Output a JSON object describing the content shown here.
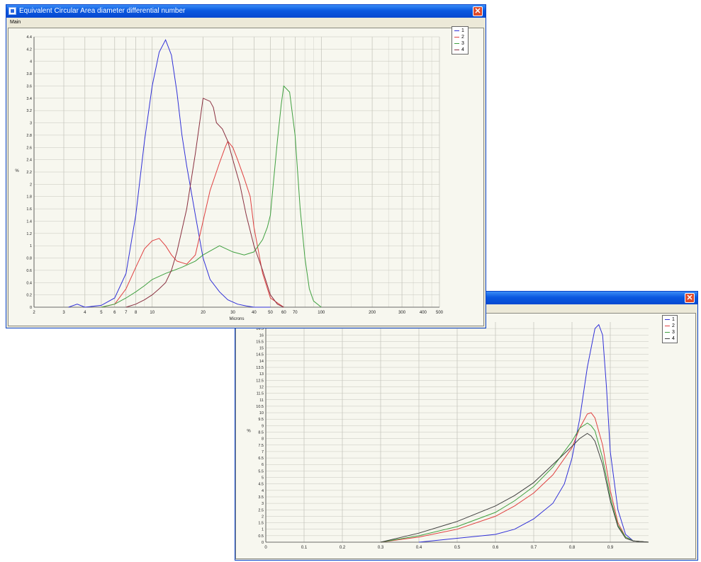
{
  "window1": {
    "title": "Equivalent Circular Area diameter differential number",
    "menu_label": "Main",
    "close_glyph": "✕"
  },
  "window2": {
    "close_glyph": "✕"
  },
  "chart_data": [
    {
      "type": "line",
      "xscale": "log",
      "xlim": [
        2,
        500
      ],
      "ylim": [
        0,
        4.4
      ],
      "xlabel": "Microns",
      "ylabel": "%",
      "x_ticks": [
        "2",
        "3",
        "4",
        "5",
        "6",
        "7",
        "8",
        "10",
        "20",
        "30",
        "40",
        "50",
        "60",
        "70",
        "100",
        "200",
        "300",
        "400",
        "500"
      ],
      "y_ticks": [
        "0",
        "0.2",
        "0.4",
        "0.6",
        "0.8",
        "1",
        "1.2",
        "1.4",
        "1.6",
        "1.8",
        "2",
        "2.2",
        "2.4",
        "2.6",
        "2.8",
        "3",
        "3.2",
        "3.4",
        "3.6",
        "3.8",
        "4",
        "4.2",
        "4.4"
      ],
      "legend": [
        "1",
        "2",
        "3",
        "4"
      ],
      "grid": true,
      "series": [
        {
          "name": "1",
          "color": "#3030d8",
          "x": [
            3.2,
            3.6,
            4,
            5,
            6,
            7,
            8,
            9,
            10,
            11,
            12,
            13,
            14,
            15,
            16,
            18,
            20,
            22,
            25,
            28,
            32,
            36,
            40,
            50
          ],
          "y": [
            0,
            0.05,
            0,
            0.03,
            0.15,
            0.55,
            1.5,
            2.7,
            3.6,
            4.15,
            4.35,
            4.1,
            3.5,
            2.8,
            2.3,
            1.5,
            0.8,
            0.45,
            0.25,
            0.12,
            0.05,
            0.02,
            0,
            0
          ]
        },
        {
          "name": "2",
          "color": "#e04040",
          "x": [
            5,
            6,
            7,
            8,
            9,
            10,
            11,
            12,
            13,
            14,
            16,
            18,
            20,
            22,
            25,
            27,
            28,
            30,
            32,
            35,
            38,
            40,
            45,
            50,
            60
          ],
          "y": [
            0,
            0.05,
            0.3,
            0.65,
            0.95,
            1.08,
            1.12,
            1.0,
            0.85,
            0.75,
            0.7,
            0.85,
            1.4,
            1.9,
            2.35,
            2.6,
            2.7,
            2.6,
            2.4,
            2.1,
            1.8,
            1.3,
            0.55,
            0.15,
            0
          ]
        },
        {
          "name": "3",
          "color": "#40a040",
          "x": [
            5,
            6,
            7,
            8,
            9,
            10,
            12,
            15,
            18,
            20,
            25,
            30,
            35,
            40,
            45,
            48,
            50,
            52,
            55,
            58,
            60,
            65,
            70,
            75,
            80,
            85,
            90,
            100
          ],
          "y": [
            0,
            0.05,
            0.15,
            0.25,
            0.35,
            0.45,
            0.55,
            0.65,
            0.75,
            0.85,
            1.0,
            0.9,
            0.85,
            0.9,
            1.1,
            1.3,
            1.5,
            2.0,
            2.7,
            3.3,
            3.6,
            3.5,
            2.8,
            1.6,
            0.8,
            0.3,
            0.1,
            0
          ]
        },
        {
          "name": "4",
          "color": "#8a3040",
          "x": [
            7,
            8,
            9,
            10,
            11,
            12,
            13,
            14,
            16,
            18,
            20,
            22,
            23,
            24,
            26,
            28,
            30,
            33,
            36,
            40,
            45,
            50,
            55,
            60
          ],
          "y": [
            0,
            0.05,
            0.12,
            0.2,
            0.3,
            0.4,
            0.6,
            0.9,
            1.6,
            2.5,
            3.4,
            3.35,
            3.25,
            3.0,
            2.9,
            2.7,
            2.4,
            2.0,
            1.5,
            1.0,
            0.6,
            0.2,
            0.05,
            0
          ]
        }
      ]
    },
    {
      "type": "line",
      "xlim": [
        0,
        1.0
      ],
      "ylim": [
        0,
        17
      ],
      "xlabel": "",
      "ylabel": "%",
      "x_ticks": [
        "0",
        "0.1",
        "0.2",
        "0.3",
        "0.4",
        "0.5",
        "0.6",
        "0.7",
        "0.8",
        "0.9"
      ],
      "y_ticks": [
        "0",
        "0.5",
        "1",
        "1.5",
        "2",
        "2.5",
        "3",
        "3.5",
        "4",
        "4.5",
        "5",
        "5.5",
        "6",
        "6.5",
        "7",
        "7.5",
        "8",
        "8.5",
        "9",
        "9.5",
        "10",
        "10.5",
        "11",
        "11.5",
        "12",
        "12.5",
        "13",
        "13.5",
        "14",
        "14.5",
        "15",
        "15.5",
        "16",
        "16.5"
      ],
      "legend": [
        "1",
        "2",
        "3",
        "4"
      ],
      "grid": true,
      "series": [
        {
          "name": "1",
          "color": "#3030d8",
          "x": [
            0.4,
            0.5,
            0.6,
            0.65,
            0.7,
            0.75,
            0.78,
            0.8,
            0.82,
            0.84,
            0.86,
            0.87,
            0.88,
            0.89,
            0.9,
            0.92,
            0.94,
            0.96,
            1.0
          ],
          "y": [
            0,
            0.3,
            0.6,
            1.0,
            1.8,
            3.0,
            4.5,
            6.5,
            9.5,
            13.5,
            16.5,
            16.8,
            16.0,
            12.0,
            7.0,
            2.5,
            0.6,
            0.1,
            0
          ]
        },
        {
          "name": "2",
          "color": "#e04040",
          "x": [
            0.3,
            0.4,
            0.5,
            0.6,
            0.65,
            0.7,
            0.75,
            0.8,
            0.82,
            0.84,
            0.85,
            0.86,
            0.88,
            0.9,
            0.92,
            0.94,
            0.96,
            1.0
          ],
          "y": [
            0,
            0.4,
            1.0,
            2.0,
            2.8,
            3.8,
            5.2,
            7.3,
            8.8,
            9.9,
            10.0,
            9.6,
            7.5,
            4.0,
            1.5,
            0.4,
            0.1,
            0
          ]
        },
        {
          "name": "3",
          "color": "#40a040",
          "x": [
            0.3,
            0.4,
            0.5,
            0.6,
            0.65,
            0.7,
            0.75,
            0.8,
            0.82,
            0.84,
            0.85,
            0.86,
            0.88,
            0.9,
            0.92,
            0.94,
            0.96,
            1.0
          ],
          "y": [
            0,
            0.5,
            1.2,
            2.3,
            3.2,
            4.3,
            5.8,
            7.8,
            8.8,
            9.2,
            9.0,
            8.6,
            6.5,
            3.5,
            1.3,
            0.4,
            0.1,
            0
          ]
        },
        {
          "name": "4",
          "color": "#404040",
          "x": [
            0.3,
            0.4,
            0.5,
            0.6,
            0.65,
            0.7,
            0.75,
            0.8,
            0.82,
            0.84,
            0.85,
            0.86,
            0.88,
            0.9,
            0.92,
            0.94,
            0.96,
            1.0
          ],
          "y": [
            0,
            0.7,
            1.6,
            2.8,
            3.6,
            4.6,
            6.0,
            7.4,
            8.0,
            8.4,
            8.2,
            7.8,
            6.0,
            3.2,
            1.2,
            0.3,
            0.1,
            0
          ]
        }
      ]
    }
  ]
}
